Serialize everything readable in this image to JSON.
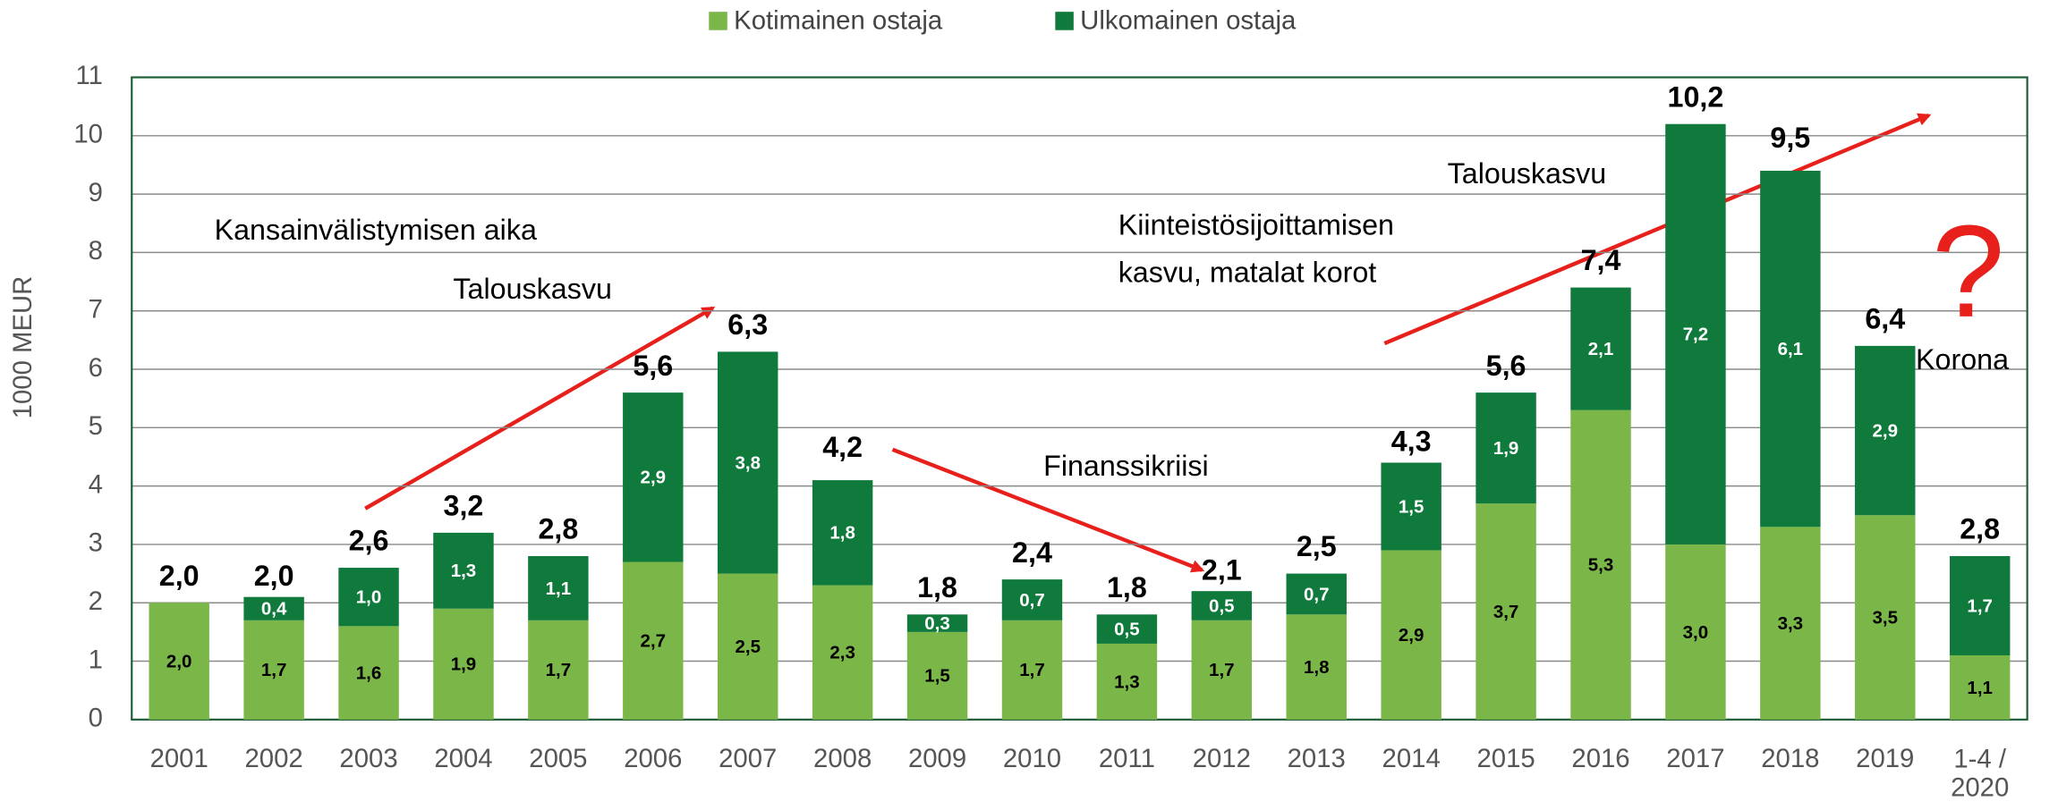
{
  "chart_data": {
    "type": "stacked-bar",
    "y_label": "1000 MEUR",
    "categories": [
      "2001",
      "2002",
      "2003",
      "2004",
      "2005",
      "2006",
      "2007",
      "2008",
      "2009",
      "2010",
      "2011",
      "2012",
      "2013",
      "2014",
      "2015",
      "2016",
      "2017",
      "2018",
      "2019",
      "1-4 /\n2020"
    ],
    "series": [
      {
        "name": "Kotimainen ostaja",
        "color": "#7ab648",
        "values": [
          2.0,
          1.7,
          1.6,
          1.9,
          1.7,
          2.7,
          2.5,
          2.3,
          1.5,
          1.7,
          1.3,
          1.7,
          1.8,
          2.9,
          3.7,
          5.3,
          3.0,
          3.3,
          3.5,
          1.1
        ],
        "value_labels": [
          "2,0",
          "1,7",
          "1,6",
          "1,9",
          "1,7",
          "2,7",
          "2,5",
          "2,3",
          "1,5",
          "1,7",
          "1,3",
          "1,7",
          "1,8",
          "2,9",
          "3,7",
          "5,3",
          "3,0",
          "3,3",
          "3,5",
          "1,1"
        ]
      },
      {
        "name": "Ulkomainen ostaja",
        "color": "#0f7a3b",
        "values": [
          null,
          0.4,
          1.0,
          1.3,
          1.1,
          2.9,
          3.8,
          1.8,
          0.3,
          0.7,
          0.5,
          0.5,
          0.7,
          1.5,
          1.9,
          2.1,
          7.2,
          6.1,
          2.9,
          1.7
        ],
        "value_labels": [
          null,
          "0,4",
          "1,0",
          "1,3",
          "1,1",
          "2,9",
          "3,8",
          "1,8",
          "0,3",
          "0,7",
          "0,5",
          "0,5",
          "0,7",
          "1,5",
          "1,9",
          "2,1",
          "7,2",
          "6,1",
          "2,9",
          "1,7"
        ]
      }
    ],
    "totals": {
      "values": [
        2.0,
        2.0,
        2.6,
        3.2,
        2.8,
        5.6,
        6.3,
        4.2,
        1.8,
        2.4,
        1.8,
        2.1,
        2.5,
        4.3,
        5.6,
        7.4,
        10.2,
        9.5,
        6.4,
        2.8
      ],
      "value_labels": [
        "2,0",
        "2,0",
        "2,6",
        "3,2",
        "2,8",
        "5,6",
        "6,3",
        "4,2",
        "1,8",
        "2,4",
        "1,8",
        "2,1",
        "2,5",
        "4,3",
        "5,6",
        "7,4",
        "10,2",
        "9,5",
        "6,4",
        "2,8"
      ]
    },
    "ylim": [
      0,
      11
    ],
    "yticks": [
      0,
      1,
      2,
      3,
      4,
      5,
      6,
      7,
      8,
      9,
      10,
      11
    ],
    "grid": true,
    "legend": "top",
    "annotations": [
      {
        "text": "Kansainvälistymisen aika"
      },
      {
        "text": "Talouskasvu"
      },
      {
        "text": "Finanssikriisi"
      },
      {
        "text": "Kiinteistösijoittamisen\nkasvu, matalat korot"
      },
      {
        "text": "Talouskasvu"
      },
      {
        "text": "?"
      },
      {
        "text": "Korona"
      }
    ]
  }
}
